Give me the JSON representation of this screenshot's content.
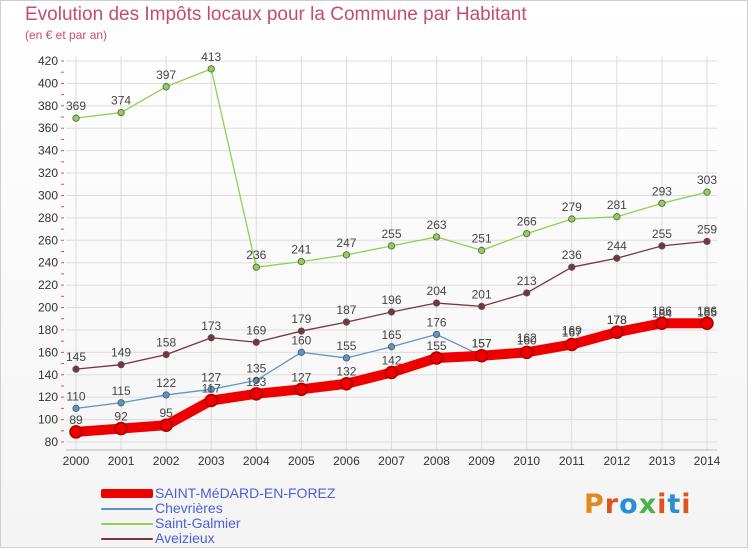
{
  "title": "Evolution des Impôts locaux pour la Commune par Habitant",
  "subtitle": "(en € et par an)",
  "logo_text": "Proxiti",
  "logo_colors": [
    "#e08a1e",
    "#e0531e",
    "#2a8fd6",
    "#49b34a",
    "#e0531e",
    "#2a8fd6",
    "#e0531e"
  ],
  "chart_data": {
    "type": "line",
    "x": [
      "2000",
      "2001",
      "2002",
      "2003",
      "2004",
      "2005",
      "2006",
      "2007",
      "2008",
      "2009",
      "2010",
      "2011",
      "2012",
      "2013",
      "2014"
    ],
    "ylim": [
      80,
      420
    ],
    "yticks": [
      80,
      100,
      120,
      140,
      160,
      180,
      200,
      220,
      240,
      260,
      280,
      300,
      320,
      340,
      360,
      380,
      400,
      420
    ],
    "grid": true,
    "legend_position": "bottom-left",
    "series": [
      {
        "name": "SAINT-MéDARD-EN-FOREZ",
        "color": "#ee0000",
        "values": [
          89,
          92,
          95,
          117,
          123,
          127,
          132,
          142,
          155,
          157,
          160,
          167,
          178,
          186,
          186
        ],
        "labels": [
          "89",
          "92",
          "95",
          "117",
          "123",
          "127",
          "132",
          "142",
          "155",
          "157",
          "160",
          "167",
          "178",
          "186",
          "186"
        ]
      },
      {
        "name": "Chevrières",
        "color": "#5b94c8",
        "values": [
          110,
          115,
          122,
          127,
          135,
          160,
          155,
          165,
          176,
          157,
          162,
          169,
          178,
          184,
          185
        ],
        "labels": [
          "110",
          "115",
          "122",
          "127",
          "135",
          "160",
          "155",
          "165",
          "176",
          "157",
          "162",
          "169",
          "178",
          "184",
          "185"
        ]
      },
      {
        "name": "Saint-Galmier",
        "color": "#8fd14f",
        "values": [
          369,
          374,
          397,
          413,
          236,
          241,
          247,
          255,
          263,
          251,
          266,
          279,
          281,
          293,
          303
        ],
        "labels": [
          "369",
          "374",
          "397",
          "413",
          "236",
          "241",
          "247",
          "255",
          "263",
          "251",
          "266",
          "279",
          "281",
          "293",
          "303"
        ]
      },
      {
        "name": "Aveizieux",
        "color": "#7a3340",
        "values": [
          145,
          149,
          158,
          173,
          169,
          179,
          187,
          196,
          204,
          201,
          213,
          236,
          244,
          255,
          259
        ],
        "labels": [
          "145",
          "149",
          "158",
          "173",
          "169",
          "179",
          "187",
          "196",
          "204",
          "201",
          "213",
          "236",
          "244",
          "255",
          "259"
        ]
      }
    ]
  }
}
